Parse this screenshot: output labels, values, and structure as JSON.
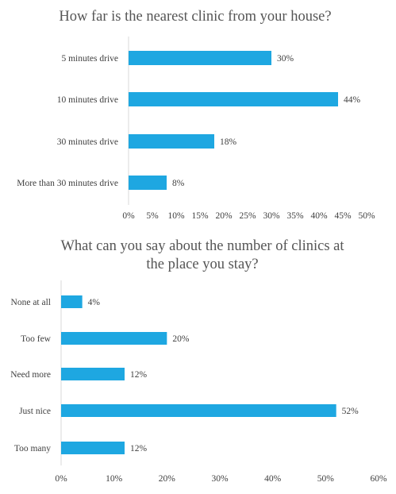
{
  "chart_data": [
    {
      "type": "bar",
      "orientation": "horizontal",
      "title": "How far is the nearest clinic from your house?",
      "categories": [
        "5 minutes drive",
        "10 minutes drive",
        "30 minutes drive",
        "More than 30 minutes drive"
      ],
      "values": [
        30,
        44,
        18,
        8
      ],
      "data_labels": [
        "30%",
        "44%",
        "18%",
        "8%"
      ],
      "xticks": [
        "0%",
        "5%",
        "10%",
        "15%",
        "20%",
        "25%",
        "30%",
        "35%",
        "40%",
        "45%",
        "50%"
      ],
      "xlim": [
        0,
        50
      ],
      "grid": false,
      "legend": "none",
      "bar_color": "#1EA7E1"
    },
    {
      "type": "bar",
      "orientation": "horizontal",
      "title": "What can you say about the number of clinics at the place you stay?",
      "title_lines": [
        "What can you say about the number of clinics at",
        "the place you stay?"
      ],
      "categories": [
        "None at all",
        "Too few",
        "Need more",
        "Just nice",
        "Too many"
      ],
      "values": [
        4,
        20,
        12,
        52,
        12
      ],
      "data_labels": [
        "4%",
        "20%",
        "12%",
        "52%",
        "12%"
      ],
      "xticks": [
        "0%",
        "10%",
        "20%",
        "30%",
        "40%",
        "50%",
        "60%"
      ],
      "xlim": [
        0,
        60
      ],
      "grid": false,
      "legend": "none",
      "bar_color": "#1EA7E1"
    }
  ]
}
